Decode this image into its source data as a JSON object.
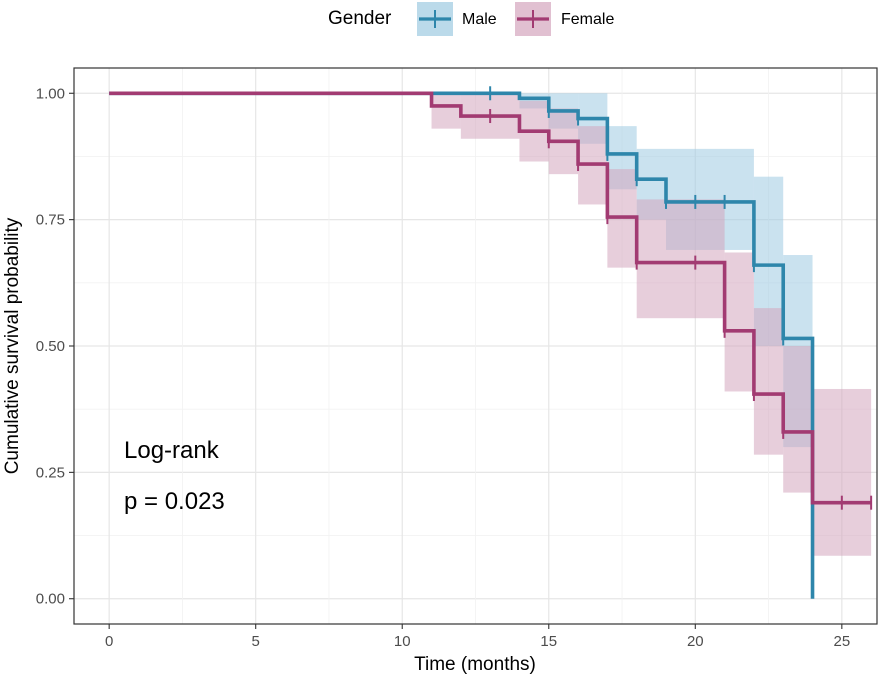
{
  "chart_data": {
    "type": "line",
    "subtype": "kaplan-meier",
    "title": "",
    "xlabel": "Time (months)",
    "ylabel": "Cumulative survival probability",
    "xlim": [
      -1.2,
      26.2
    ],
    "ylim": [
      -0.05,
      1.05
    ],
    "x_ticks": [
      0,
      5,
      10,
      15,
      20,
      25
    ],
    "x_tick_labels": [
      "0",
      "5",
      "10",
      "15",
      "20",
      "25"
    ],
    "y_ticks": [
      0,
      0.25,
      0.5,
      0.75,
      1.0
    ],
    "y_tick_labels": [
      "0.00",
      "0.25",
      "0.50",
      "0.75",
      "1.00"
    ],
    "grid": true,
    "legend": {
      "title": "Gender",
      "position": "top",
      "entries": [
        "Male",
        "Female"
      ]
    },
    "annotation": {
      "line1": "Log-rank",
      "line2": "p = 0.023"
    },
    "series": [
      {
        "name": "Male",
        "color": "#2e86ab",
        "band_color": "#9ecae1",
        "steps": [
          [
            0,
            1.0
          ],
          [
            14,
            0.99
          ],
          [
            15,
            0.965
          ],
          [
            16,
            0.95
          ],
          [
            17,
            0.88
          ],
          [
            18,
            0.83
          ],
          [
            19,
            0.785
          ],
          [
            22,
            0.66
          ],
          [
            23,
            0.515
          ],
          [
            24,
            0.0
          ]
        ],
        "end_x": 24,
        "ci": [
          [
            0,
            1.0,
            1.0
          ],
          [
            14,
            0.97,
            1.0
          ],
          [
            15,
            0.93,
            1.0
          ],
          [
            16,
            0.9,
            1.0
          ],
          [
            17,
            0.81,
            0.935
          ],
          [
            18,
            0.75,
            0.89
          ],
          [
            19,
            0.69,
            0.89
          ],
          [
            22,
            0.5,
            0.835
          ],
          [
            23,
            0.3,
            0.68
          ]
        ],
        "censored_x": [
          13,
          15,
          16,
          17,
          18,
          19,
          20,
          21,
          22,
          23
        ]
      },
      {
        "name": "Female",
        "color": "#a23b72",
        "band_color": "#d4a5bd",
        "steps": [
          [
            0,
            1.0
          ],
          [
            11,
            0.975
          ],
          [
            12,
            0.955
          ],
          [
            14,
            0.925
          ],
          [
            15,
            0.905
          ],
          [
            16,
            0.86
          ],
          [
            17,
            0.755
          ],
          [
            18,
            0.665
          ],
          [
            21,
            0.53
          ],
          [
            22,
            0.405
          ],
          [
            23,
            0.33
          ],
          [
            24,
            0.19
          ]
        ],
        "end_x": 26,
        "ci": [
          [
            0,
            1.0,
            1.0
          ],
          [
            11,
            0.93,
            1.0
          ],
          [
            12,
            0.91,
            1.0
          ],
          [
            14,
            0.865,
            0.985
          ],
          [
            15,
            0.84,
            0.97
          ],
          [
            16,
            0.78,
            0.935
          ],
          [
            17,
            0.655,
            0.85
          ],
          [
            18,
            0.555,
            0.79
          ],
          [
            21,
            0.41,
            0.685
          ],
          [
            22,
            0.285,
            0.575
          ],
          [
            23,
            0.21,
            0.5
          ],
          [
            24,
            0.085,
            0.415
          ]
        ],
        "censored_x": [
          13,
          15,
          16,
          17,
          18,
          20,
          21,
          22,
          23,
          25,
          26
        ]
      }
    ]
  }
}
